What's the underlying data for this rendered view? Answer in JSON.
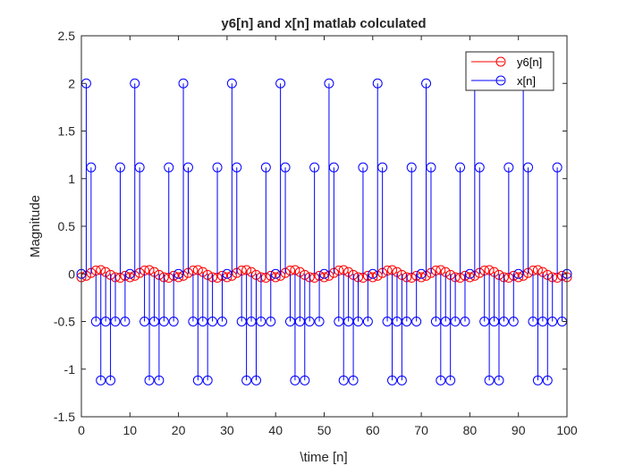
{
  "colors": {
    "y6": "#ff0000",
    "x": "#0000ff",
    "axis": "#262626"
  },
  "chart_data": {
    "type": "stem",
    "title": "y6[n] and x[n] matlab colculated",
    "xlabel": "\\time [n]",
    "ylabel": "Magnitude",
    "xlim": [
      0,
      100
    ],
    "ylim": [
      -1.5,
      2.5
    ],
    "xticks": [
      "0",
      "10",
      "20",
      "30",
      "40",
      "50",
      "60",
      "70",
      "80",
      "90",
      "100"
    ],
    "yticks": [
      "-1.5",
      "-1",
      "-0.5",
      "0",
      "0.5",
      "1",
      "1.5",
      "2",
      "2.5"
    ],
    "grid": false,
    "legend_position": "top-right",
    "legend": [
      "y6[n]",
      "x[n]"
    ],
    "x_pattern_period10": [
      0,
      2,
      1.118,
      -0.5,
      -1.118,
      -0.5,
      -1.118,
      -0.5,
      1.118,
      -0.5
    ],
    "y6_pattern_period10": [
      -0.035,
      -0.02,
      0.01,
      0.035,
      0.04,
      0.02,
      -0.01,
      -0.035,
      -0.04,
      -0.02
    ],
    "n_start": 0,
    "n_end": 100,
    "series": [
      {
        "name": "y6[n]",
        "color": "#ff0000",
        "marker": "o",
        "pattern": "y6_pattern_period10"
      },
      {
        "name": "x[n]",
        "color": "#0000ff",
        "marker": "o",
        "pattern": "x_pattern_period10"
      }
    ]
  }
}
